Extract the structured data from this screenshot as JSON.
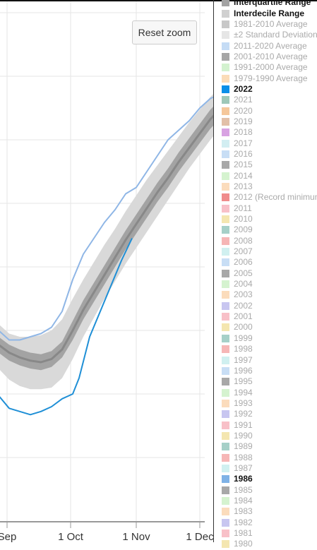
{
  "chart_data": {
    "type": "line",
    "title": "",
    "xlabel": "",
    "ylabel": "",
    "x_ticks": [
      "Sep",
      "1 Oct",
      "1 Nov",
      "1 Dec"
    ],
    "x_range_days": [
      240,
      366
    ],
    "y_range": [
      2,
      18
    ],
    "grid": true,
    "legend_position": "right",
    "series": [
      {
        "name": "2022",
        "color": "#1f8fd6",
        "x": [
          240,
          245,
          250,
          255,
          260,
          265,
          270,
          275,
          278,
          283,
          288,
          293,
          298,
          303
        ],
        "y": [
          5.95,
          5.55,
          5.45,
          5.35,
          5.45,
          5.6,
          5.85,
          6.0,
          6.5,
          7.8,
          8.6,
          9.4,
          10.2,
          10.9
        ]
      },
      {
        "name": "2011-2020 Average",
        "color": "#8fb6e6",
        "x": [
          240,
          245,
          250,
          255,
          260,
          265,
          270,
          275,
          280,
          285,
          290,
          295,
          300,
          305,
          310,
          315,
          320,
          325,
          330,
          335,
          340,
          345,
          350,
          355,
          360,
          365,
          366
        ],
        "y": [
          8.0,
          7.7,
          7.7,
          7.8,
          7.9,
          8.1,
          8.6,
          9.6,
          10.4,
          10.9,
          11.4,
          11.8,
          12.3,
          12.5,
          13.0,
          13.5,
          14.0,
          14.3,
          14.6,
          15.0,
          15.3,
          15.45,
          15.6,
          15.9,
          16.25,
          16.5,
          16.5
        ]
      },
      {
        "name": "1981-2010 Average",
        "color": "#888888",
        "x": [
          240,
          245,
          250,
          255,
          260,
          265,
          270,
          275,
          280,
          285,
          290,
          295,
          300,
          305,
          310,
          315,
          320,
          325,
          330,
          335,
          340,
          345,
          350,
          355,
          360,
          365,
          366
        ],
        "y": [
          7.55,
          7.3,
          7.15,
          7.05,
          7.0,
          7.1,
          7.4,
          8.0,
          8.65,
          9.2,
          9.75,
          10.3,
          10.85,
          11.35,
          11.85,
          12.35,
          12.8,
          13.3,
          13.75,
          14.2,
          14.65,
          15.0,
          15.3,
          15.6,
          15.9,
          16.2,
          16.25
        ]
      }
    ],
    "bands": [
      {
        "name": "Interdecile Range",
        "color": "#d9d9d9",
        "x": [
          240,
          245,
          250,
          255,
          260,
          265,
          270,
          275,
          280,
          285,
          290,
          295,
          300,
          305,
          310,
          315,
          320,
          325,
          330,
          335,
          340,
          345,
          350,
          355,
          360,
          365,
          366
        ],
        "lower": [
          6.8,
          6.45,
          6.25,
          6.15,
          6.15,
          6.2,
          6.5,
          7.1,
          7.8,
          8.4,
          9.0,
          9.55,
          10.1,
          10.6,
          11.1,
          11.6,
          12.1,
          12.6,
          13.1,
          13.55,
          14.0,
          14.4,
          14.75,
          15.05,
          15.4,
          15.7,
          15.75
        ],
        "upper": [
          8.2,
          7.9,
          7.8,
          7.8,
          7.85,
          8.0,
          8.35,
          9.0,
          9.6,
          10.15,
          10.7,
          11.2,
          11.75,
          12.25,
          12.75,
          13.2,
          13.65,
          14.1,
          14.55,
          14.95,
          15.35,
          15.7,
          16.0,
          16.3,
          16.55,
          16.8,
          16.85
        ]
      },
      {
        "name": "Interquartile Range",
        "color": "#a3a3a3",
        "x": [
          240,
          245,
          250,
          255,
          260,
          265,
          270,
          275,
          280,
          285,
          290,
          295,
          300,
          305,
          310,
          315,
          320,
          325,
          330,
          335,
          340,
          345,
          350,
          355,
          360,
          365,
          366
        ],
        "lower": [
          7.3,
          7.05,
          6.9,
          6.8,
          6.75,
          6.85,
          7.15,
          7.7,
          8.35,
          8.9,
          9.45,
          10.0,
          10.55,
          11.05,
          11.55,
          12.05,
          12.5,
          13.0,
          13.45,
          13.9,
          14.35,
          14.7,
          15.05,
          15.35,
          15.65,
          15.95,
          16.0
        ],
        "upper": [
          7.8,
          7.55,
          7.4,
          7.3,
          7.25,
          7.35,
          7.65,
          8.3,
          8.95,
          9.5,
          10.05,
          10.6,
          11.15,
          11.65,
          12.15,
          12.65,
          13.1,
          13.6,
          14.05,
          14.5,
          14.95,
          15.3,
          15.55,
          15.85,
          16.15,
          16.45,
          16.5
        ]
      }
    ]
  },
  "ui": {
    "reset_zoom_label": "Reset zoom"
  },
  "legend": [
    {
      "label": "Interquartile Range",
      "color": "#a3a3a3",
      "bold": true
    },
    {
      "label": "Interdecile Range",
      "color": "#d0d0d0",
      "bold": true
    },
    {
      "label": "1981-2010 Average",
      "color": "#c8c8c8",
      "bold": false
    },
    {
      "label": "±2 Standard Deviation",
      "color": "#e6e6e6",
      "bold": false
    },
    {
      "label": "2011-2020 Average",
      "color": "#c5dcf5",
      "bold": false
    },
    {
      "label": "2001-2010 Average",
      "color": "#a6a6a6",
      "bold": false
    },
    {
      "label": "1991-2000 Average",
      "color": "#d3f2cf",
      "bold": false
    },
    {
      "label": "1979-1990 Average",
      "color": "#fbdcb8",
      "bold": false
    },
    {
      "label": "2022",
      "color": "#0b8fe8",
      "bold": true
    },
    {
      "label": "2021",
      "color": "#9ec8b8",
      "bold": false
    },
    {
      "label": "2020",
      "color": "#f5c79a",
      "bold": false
    },
    {
      "label": "2019",
      "color": "#e2c0a8",
      "bold": false
    },
    {
      "label": "2018",
      "color": "#d8a2e2",
      "bold": false
    },
    {
      "label": "2017",
      "color": "#d2eef2",
      "bold": false
    },
    {
      "label": "2016",
      "color": "#c8def5",
      "bold": false
    },
    {
      "label": "2015",
      "color": "#a8a8a8",
      "bold": false
    },
    {
      "label": "2014",
      "color": "#d5f3cf",
      "bold": false
    },
    {
      "label": "2013",
      "color": "#fbdcbc",
      "bold": false
    },
    {
      "label": "2012 (Record minimum)",
      "color": "#f08c8c",
      "bold": false
    },
    {
      "label": "2011",
      "color": "#f8c0c8",
      "bold": false
    },
    {
      "label": "2010",
      "color": "#f4e6b0",
      "bold": false
    },
    {
      "label": "2009",
      "color": "#a6d0c8",
      "bold": false
    },
    {
      "label": "2008",
      "color": "#f6b6b6",
      "bold": false
    },
    {
      "label": "2007",
      "color": "#d0f0f0",
      "bold": false
    },
    {
      "label": "2006",
      "color": "#c8def5",
      "bold": false
    },
    {
      "label": "2005",
      "color": "#a8a8a8",
      "bold": false
    },
    {
      "label": "2004",
      "color": "#d5f3cf",
      "bold": false
    },
    {
      "label": "2003",
      "color": "#fbdcbc",
      "bold": false
    },
    {
      "label": "2002",
      "color": "#c8c6f0",
      "bold": false
    },
    {
      "label": "2001",
      "color": "#f8c0c8",
      "bold": false
    },
    {
      "label": "2000",
      "color": "#f4e6b0",
      "bold": false
    },
    {
      "label": "1999",
      "color": "#a6d0c8",
      "bold": false
    },
    {
      "label": "1998",
      "color": "#f6b6b6",
      "bold": false
    },
    {
      "label": "1997",
      "color": "#d0f0f0",
      "bold": false
    },
    {
      "label": "1996",
      "color": "#c8def5",
      "bold": false
    },
    {
      "label": "1995",
      "color": "#a8a8a8",
      "bold": false
    },
    {
      "label": "1994",
      "color": "#d5f3cf",
      "bold": false
    },
    {
      "label": "1993",
      "color": "#fbdcbc",
      "bold": false
    },
    {
      "label": "1992",
      "color": "#c8c6f0",
      "bold": false
    },
    {
      "label": "1991",
      "color": "#f8c0c8",
      "bold": false
    },
    {
      "label": "1990",
      "color": "#f4e6b0",
      "bold": false
    },
    {
      "label": "1989",
      "color": "#a6d0c8",
      "bold": false
    },
    {
      "label": "1988",
      "color": "#f6b6b6",
      "bold": false
    },
    {
      "label": "1987",
      "color": "#d0f0f0",
      "bold": false
    },
    {
      "label": "1986",
      "color": "#7fb2e6",
      "bold": true
    },
    {
      "label": "1985",
      "color": "#a8a8a8",
      "bold": false
    },
    {
      "label": "1984",
      "color": "#d5f3cf",
      "bold": false
    },
    {
      "label": "1983",
      "color": "#fbdcbc",
      "bold": false
    },
    {
      "label": "1982",
      "color": "#c8c6f0",
      "bold": false
    },
    {
      "label": "1981",
      "color": "#f8c0c8",
      "bold": false
    },
    {
      "label": "1980",
      "color": "#f4e6b0",
      "bold": false
    }
  ]
}
